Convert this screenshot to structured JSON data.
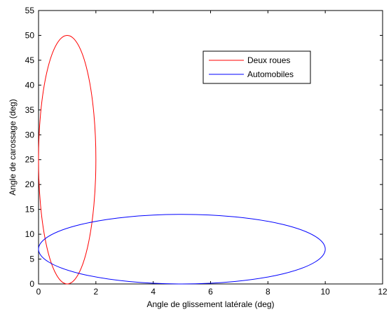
{
  "chart_data": {
    "type": "line",
    "title": "",
    "xlabel": "Angle de glissement latérale (deg)",
    "ylabel": "Angle de carossage (deg)",
    "xlim": [
      0,
      12
    ],
    "ylim": [
      0,
      55
    ],
    "xticks": [
      0,
      2,
      4,
      6,
      8,
      10,
      12
    ],
    "yticks": [
      0,
      5,
      10,
      15,
      20,
      25,
      30,
      35,
      40,
      45,
      50,
      55
    ],
    "grid": false,
    "legend_position": "top-right",
    "series": [
      {
        "name": "Deux roues",
        "color": "#ff0000",
        "shape": "ellipse",
        "center": [
          1,
          25
        ],
        "radius_x": 1,
        "radius_y": 25
      },
      {
        "name": "Automobiles",
        "color": "#0000ff",
        "shape": "ellipse",
        "center": [
          5,
          7
        ],
        "radius_x": 5,
        "radius_y": 7
      }
    ]
  }
}
